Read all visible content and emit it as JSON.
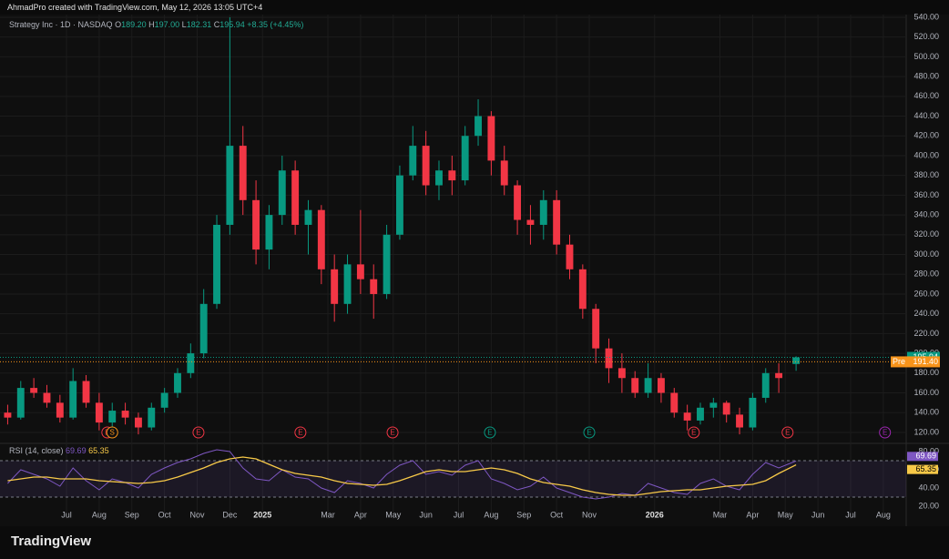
{
  "header": "AhmadPro created with TradingView.com, May 12, 2026 13:05 UTC+4",
  "legend": {
    "name": "Strategy Inc · 1D · NASDAQ",
    "fields": [
      {
        "key": "O",
        "value": "189.20"
      },
      {
        "key": "H",
        "value": "197.00"
      },
      {
        "key": "L",
        "value": "182.31"
      },
      {
        "key": "C",
        "value": "195.94"
      }
    ],
    "change": "+8.35 (+4.45%)"
  },
  "footer": "TradingView",
  "chart_data": [
    {
      "type": "candlestick",
      "up_color": "#089981",
      "down_color": "#f23645",
      "x": [
        5.2,
        5.6,
        6.0,
        6.4,
        6.8,
        7.2,
        7.6,
        8.0,
        8.4,
        8.8,
        9.2,
        9.6,
        10.0,
        10.4,
        10.8,
        11.2,
        11.6,
        12.0,
        12.4,
        12.8,
        13.2,
        13.6,
        14.0,
        14.4,
        14.8,
        15.2,
        15.6,
        16.0,
        16.4,
        16.8,
        17.2,
        17.6,
        18.0,
        18.4,
        18.8,
        19.2,
        19.6,
        20.0,
        20.4,
        20.8,
        21.2,
        21.6,
        22.0,
        22.4,
        22.8,
        23.2,
        23.6,
        24.0,
        24.4,
        24.8,
        25.2,
        25.6,
        26.0,
        26.4,
        26.8,
        27.2,
        27.6,
        28.0,
        28.4,
        28.8,
        29.33
      ],
      "ohlc": [
        [
          140,
          148,
          128,
          135
        ],
        [
          135,
          172,
          133,
          165
        ],
        [
          165,
          175,
          155,
          160
        ],
        [
          160,
          168,
          145,
          150
        ],
        [
          150,
          158,
          130,
          135
        ],
        [
          135,
          185,
          133,
          172
        ],
        [
          172,
          178,
          145,
          150
        ],
        [
          150,
          160,
          122,
          130
        ],
        [
          130,
          150,
          125,
          142
        ],
        [
          142,
          150,
          128,
          135
        ],
        [
          135,
          140,
          118,
          125
        ],
        [
          125,
          150,
          122,
          145
        ],
        [
          145,
          165,
          140,
          160
        ],
        [
          160,
          185,
          155,
          180
        ],
        [
          180,
          210,
          175,
          200
        ],
        [
          200,
          265,
          195,
          250
        ],
        [
          250,
          340,
          245,
          330
        ],
        [
          330,
          540,
          320,
          410
        ],
        [
          410,
          430,
          340,
          355
        ],
        [
          355,
          375,
          290,
          305
        ],
        [
          305,
          350,
          285,
          340
        ],
        [
          340,
          400,
          330,
          385
        ],
        [
          385,
          395,
          320,
          330
        ],
        [
          330,
          355,
          300,
          345
        ],
        [
          345,
          350,
          270,
          285
        ],
        [
          285,
          300,
          232,
          250
        ],
        [
          250,
          300,
          240,
          290
        ],
        [
          290,
          345,
          260,
          275
        ],
        [
          275,
          290,
          235,
          260
        ],
        [
          260,
          330,
          255,
          320
        ],
        [
          320,
          390,
          315,
          380
        ],
        [
          380,
          430,
          375,
          410
        ],
        [
          410,
          425,
          360,
          370
        ],
        [
          370,
          395,
          355,
          385
        ],
        [
          385,
          400,
          360,
          375
        ],
        [
          375,
          430,
          370,
          420
        ],
        [
          420,
          457,
          410,
          440
        ],
        [
          440,
          445,
          380,
          395
        ],
        [
          395,
          410,
          360,
          370
        ],
        [
          370,
          375,
          320,
          335
        ],
        [
          335,
          350,
          310,
          330
        ],
        [
          330,
          365,
          315,
          355
        ],
        [
          355,
          365,
          300,
          310
        ],
        [
          310,
          320,
          275,
          285
        ],
        [
          285,
          290,
          235,
          245
        ],
        [
          245,
          250,
          190,
          205
        ],
        [
          205,
          215,
          170,
          185
        ],
        [
          185,
          200,
          160,
          175
        ],
        [
          175,
          182,
          155,
          160
        ],
        [
          160,
          190,
          155,
          175
        ],
        [
          175,
          180,
          150,
          160
        ],
        [
          160,
          165,
          135,
          140
        ],
        [
          140,
          148,
          122,
          132
        ],
        [
          132,
          150,
          128,
          145
        ],
        [
          145,
          155,
          135,
          150
        ],
        [
          150,
          152,
          130,
          138
        ],
        [
          138,
          145,
          118,
          125
        ],
        [
          125,
          160,
          122,
          155
        ],
        [
          155,
          185,
          150,
          180
        ],
        [
          180,
          190,
          160,
          175
        ],
        [
          189.2,
          197,
          182.31,
          195.94
        ]
      ],
      "xlim": [
        4.965,
        32.7
      ],
      "xticks": [
        {
          "value": 7,
          "label": "Jul"
        },
        {
          "value": 8,
          "label": "Aug"
        },
        {
          "value": 9,
          "label": "Sep"
        },
        {
          "value": 10,
          "label": "Oct"
        },
        {
          "value": 11,
          "label": "Nov"
        },
        {
          "value": 12,
          "label": "Dec"
        },
        {
          "value": 13,
          "label": "2025"
        },
        {
          "value": 15,
          "label": "Mar"
        },
        {
          "value": 16,
          "label": "Apr"
        },
        {
          "value": 17,
          "label": "May"
        },
        {
          "value": 18,
          "label": "Jun"
        },
        {
          "value": 19,
          "label": "Jul"
        },
        {
          "value": 20,
          "label": "Aug"
        },
        {
          "value": 21,
          "label": "Sep"
        },
        {
          "value": 22,
          "label": "Oct"
        },
        {
          "value": 23,
          "label": "Nov"
        },
        {
          "value": 25,
          "label": "2026"
        },
        {
          "value": 27,
          "label": "Mar"
        },
        {
          "value": 28,
          "label": "Apr"
        },
        {
          "value": 29,
          "label": "May"
        },
        {
          "value": 30,
          "label": "Jun"
        },
        {
          "value": 31,
          "label": "Jul"
        },
        {
          "value": 32,
          "label": "Aug"
        }
      ],
      "ylim": [
        108.9,
        550.1
      ],
      "yticks": [
        {
          "value": 120,
          "label": "120.00"
        },
        {
          "value": 140,
          "label": "140.00"
        },
        {
          "value": 160,
          "label": "160.00"
        },
        {
          "value": 180,
          "label": "180.00"
        },
        {
          "value": 200,
          "label": "200.00"
        },
        {
          "value": 220,
          "label": "220.00"
        },
        {
          "value": 240,
          "label": "240.00"
        },
        {
          "value": 260,
          "label": "260.00"
        },
        {
          "value": 280,
          "label": "280.00"
        },
        {
          "value": 300,
          "label": "300.00"
        },
        {
          "value": 320,
          "label": "320.00"
        },
        {
          "value": 340,
          "label": "340.00"
        },
        {
          "value": 360,
          "label": "360.00"
        },
        {
          "value": 380,
          "label": "380.00"
        },
        {
          "value": 400,
          "label": "400.00"
        },
        {
          "value": 420,
          "label": "420.00"
        },
        {
          "value": 440,
          "label": "440.00"
        },
        {
          "value": 460,
          "label": "460.00"
        },
        {
          "value": 480,
          "label": "480.00"
        },
        {
          "value": 500,
          "label": "500.00"
        },
        {
          "value": 520,
          "label": "520.00"
        },
        {
          "value": 540,
          "label": "540.00"
        }
      ],
      "grid": true,
      "last_price": {
        "value": 195.94,
        "label": "195.94",
        "color": "#089981"
      },
      "pre_market": {
        "name": "Pre",
        "value": 191.4,
        "label": "191.40",
        "color": "#f7931a"
      },
      "events": [
        {
          "x": 8.25,
          "label": "E",
          "color": "#f23645"
        },
        {
          "x": 8.4,
          "label": "S",
          "color": "#f7931a"
        },
        {
          "x": 11.04,
          "label": "E",
          "color": "#f23645"
        },
        {
          "x": 14.16,
          "label": "E",
          "color": "#f23645"
        },
        {
          "x": 16.98,
          "label": "E",
          "color": "#f23645"
        },
        {
          "x": 19.96,
          "label": "E",
          "color": "#089981"
        },
        {
          "x": 23.0,
          "label": "E",
          "color": "#089981"
        },
        {
          "x": 26.2,
          "label": "E",
          "color": "#f23645"
        },
        {
          "x": 29.07,
          "label": "E",
          "color": "#f23645"
        },
        {
          "x": 32.05,
          "label": "E",
          "color": "#9c27b0"
        }
      ]
    },
    {
      "type": "line",
      "title": "RSI (14, close)",
      "x": [
        5.2,
        5.6,
        6.0,
        6.4,
        6.8,
        7.2,
        7.6,
        8.0,
        8.4,
        8.8,
        9.2,
        9.6,
        10.0,
        10.4,
        10.8,
        11.2,
        11.6,
        12.0,
        12.4,
        12.8,
        13.2,
        13.6,
        14.0,
        14.4,
        14.8,
        15.2,
        15.6,
        16.0,
        16.4,
        16.8,
        17.2,
        17.6,
        18.0,
        18.4,
        18.8,
        19.2,
        19.6,
        20.0,
        20.4,
        20.8,
        21.2,
        21.6,
        22.0,
        22.4,
        22.8,
        23.2,
        23.6,
        24.0,
        24.4,
        24.8,
        25.2,
        25.6,
        26.0,
        26.4,
        26.8,
        27.2,
        27.6,
        28.0,
        28.4,
        28.8,
        29.33
      ],
      "series": [
        {
          "color": "#7e57c2",
          "values": [
            45,
            60,
            55,
            50,
            42,
            62,
            48,
            38,
            50,
            46,
            40,
            55,
            62,
            68,
            72,
            78,
            82,
            80,
            62,
            50,
            48,
            60,
            52,
            50,
            40,
            35,
            48,
            45,
            40,
            55,
            65,
            70,
            55,
            58,
            54,
            65,
            70,
            50,
            45,
            38,
            42,
            52,
            40,
            35,
            30,
            28,
            30,
            34,
            32,
            45,
            40,
            35,
            33,
            45,
            50,
            42,
            38,
            55,
            68,
            62,
            69.69
          ]
        },
        {
          "color": "#f7c948",
          "values": [
            48,
            50,
            52,
            52,
            50,
            50,
            50,
            48,
            47,
            46,
            45,
            46,
            48,
            52,
            57,
            62,
            68,
            72,
            74,
            72,
            66,
            60,
            56,
            54,
            52,
            48,
            45,
            44,
            43,
            44,
            48,
            53,
            58,
            60,
            58,
            58,
            60,
            62,
            60,
            56,
            50,
            46,
            44,
            42,
            38,
            35,
            33,
            32,
            32,
            34,
            36,
            37,
            38,
            38,
            40,
            42,
            43,
            44,
            48,
            56,
            65.35
          ]
        }
      ],
      "xlim": [
        4.965,
        32.7
      ],
      "ylim": [
        6,
        86
      ],
      "yticks": [
        {
          "value": 20,
          "label": "20.00"
        },
        {
          "value": 40,
          "label": "40.00"
        },
        {
          "value": 60,
          "label": "60.00"
        },
        {
          "value": 80,
          "label": "80.00"
        }
      ],
      "bands": [
        30,
        70
      ]
    }
  ]
}
